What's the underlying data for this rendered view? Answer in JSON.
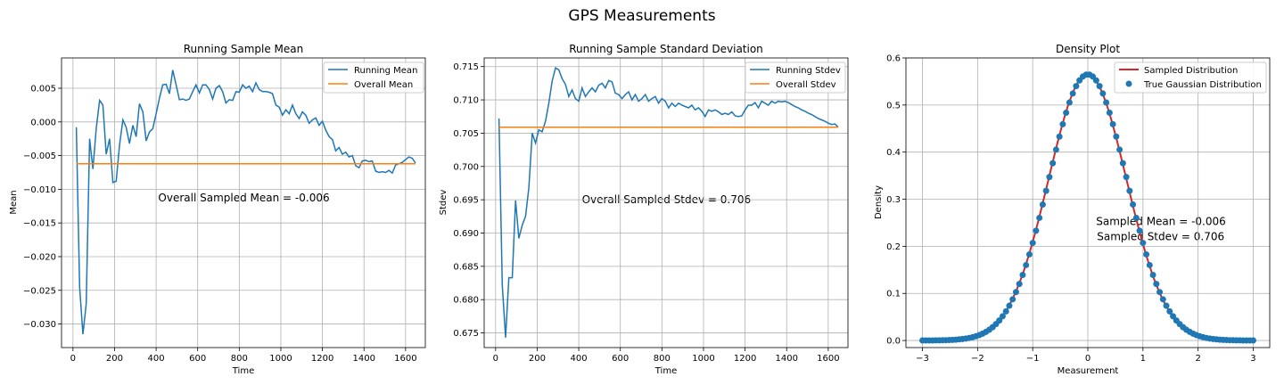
{
  "figure": {
    "title": "GPS Measurements"
  },
  "chart_data": [
    {
      "type": "line",
      "title": "Running Sample Mean",
      "xlabel": "Time",
      "ylabel": "Mean",
      "xlim": [
        -55,
        1695
      ],
      "ylim": [
        -0.0335,
        0.0095
      ],
      "xticks": [
        0,
        200,
        400,
        600,
        800,
        1000,
        1200,
        1400,
        1600
      ],
      "xtick_labels": [
        "0",
        "200",
        "400",
        "600",
        "800",
        "1000",
        "1200",
        "1400",
        "1600"
      ],
      "yticks": [
        -0.03,
        -0.025,
        -0.02,
        -0.015,
        -0.01,
        -0.005,
        0.0,
        0.005
      ],
      "ytick_labels": [
        "−0.030",
        "−0.025",
        "−0.020",
        "−0.015",
        "−0.010",
        "−0.005",
        "0.000",
        "0.005"
      ],
      "grid": true,
      "legend": "top-right",
      "annotation": {
        "text": "Overall Sampled Mean = -0.006",
        "x": 410,
        "y": -0.0118
      },
      "series": [
        {
          "name": "Running Mean",
          "color": "#1f77b4",
          "x": [
            16,
            32,
            48,
            64,
            80,
            96,
            112,
            128,
            144,
            160,
            176,
            192,
            208,
            224,
            240,
            256,
            272,
            288,
            304,
            320,
            336,
            352,
            368,
            384,
            400,
            416,
            432,
            448,
            464,
            480,
            496,
            512,
            528,
            544,
            560,
            576,
            592,
            608,
            624,
            640,
            656,
            672,
            688,
            704,
            720,
            736,
            752,
            768,
            784,
            800,
            816,
            832,
            848,
            864,
            880,
            896,
            912,
            928,
            944,
            960,
            976,
            992,
            1008,
            1024,
            1040,
            1056,
            1072,
            1088,
            1104,
            1120,
            1136,
            1152,
            1168,
            1184,
            1200,
            1216,
            1232,
            1248,
            1264,
            1280,
            1296,
            1312,
            1328,
            1344,
            1360,
            1376,
            1392,
            1408,
            1424,
            1440,
            1456,
            1472,
            1488,
            1504,
            1520,
            1536,
            1552,
            1568,
            1584,
            1600,
            1616,
            1632,
            1648
          ],
          "y": [
            -0.0008,
            -0.0245,
            -0.0315,
            -0.027,
            -0.0025,
            -0.007,
            -0.001,
            0.0032,
            0.0025,
            -0.0048,
            -0.0025,
            -0.009,
            -0.0088,
            -0.0035,
            0.0003,
            -0.0008,
            -0.0032,
            -0.0005,
            -0.0022,
            0.0027,
            0.0015,
            -0.0028,
            -0.0015,
            -0.001,
            0.0012,
            0.0035,
            0.0055,
            0.0056,
            0.0042,
            0.0077,
            0.0055,
            0.0033,
            0.0034,
            0.0032,
            0.0034,
            0.0045,
            0.0055,
            0.0043,
            0.0055,
            0.0055,
            0.0048,
            0.0034,
            0.005,
            0.0054,
            0.0045,
            0.0028,
            0.0033,
            0.0032,
            0.0045,
            0.0044,
            0.0055,
            0.005,
            0.0053,
            0.0045,
            0.0058,
            0.0048,
            0.0045,
            0.0045,
            0.0044,
            0.0042,
            0.0025,
            0.0022,
            0.001,
            0.0018,
            0.0012,
            0.0025,
            0.0012,
            0.0005,
            0.0015,
            0.001,
            -0.0002,
            0.0003,
            0.0006,
            -0.0005,
            0.0001,
            -0.0012,
            -0.0022,
            -0.0026,
            -0.0043,
            -0.0038,
            -0.0048,
            -0.0045,
            -0.0052,
            -0.005,
            -0.0065,
            -0.0068,
            -0.0058,
            -0.0057,
            -0.0059,
            -0.0058,
            -0.0073,
            -0.0075,
            -0.0074,
            -0.0075,
            -0.0072,
            -0.0076,
            -0.0064,
            -0.0062,
            -0.006,
            -0.0056,
            -0.0052,
            -0.0054,
            -0.0061
          ]
        },
        {
          "name": "Overall Mean",
          "color": "#ff7f0e",
          "x": [
            16,
            1648
          ],
          "y": [
            -0.0062,
            -0.0062
          ]
        }
      ]
    },
    {
      "type": "line",
      "title": "Running Sample Standard Deviation",
      "xlabel": "Time",
      "ylabel": "Stdev",
      "xlim": [
        -55,
        1695
      ],
      "ylim": [
        0.6728,
        0.7163
      ],
      "xticks": [
        0,
        200,
        400,
        600,
        800,
        1000,
        1200,
        1400,
        1600
      ],
      "xtick_labels": [
        "0",
        "200",
        "400",
        "600",
        "800",
        "1000",
        "1200",
        "1400",
        "1600"
      ],
      "yticks": [
        0.675,
        0.68,
        0.685,
        0.69,
        0.695,
        0.7,
        0.705,
        0.71,
        0.715
      ],
      "ytick_labels": [
        "0.675",
        "0.680",
        "0.685",
        "0.690",
        "0.695",
        "0.700",
        "0.705",
        "0.710",
        "0.715"
      ],
      "grid": true,
      "legend": "top-right",
      "annotation": {
        "text": "Overall Sampled Stdev = 0.706",
        "x": 415,
        "y": 0.6945
      },
      "series": [
        {
          "name": "Running Stdev",
          "color": "#1f77b4",
          "x": [
            16,
            32,
            48,
            64,
            80,
            96,
            112,
            128,
            144,
            160,
            176,
            192,
            208,
            224,
            240,
            256,
            272,
            288,
            304,
            320,
            336,
            352,
            368,
            384,
            400,
            416,
            432,
            448,
            464,
            480,
            496,
            512,
            528,
            544,
            560,
            576,
            592,
            608,
            624,
            640,
            656,
            672,
            688,
            704,
            720,
            736,
            752,
            768,
            784,
            800,
            816,
            832,
            848,
            864,
            880,
            896,
            912,
            928,
            944,
            960,
            976,
            992,
            1008,
            1024,
            1040,
            1056,
            1072,
            1088,
            1104,
            1120,
            1136,
            1152,
            1168,
            1184,
            1200,
            1216,
            1232,
            1248,
            1264,
            1280,
            1296,
            1312,
            1328,
            1344,
            1360,
            1376,
            1392,
            1408,
            1424,
            1440,
            1456,
            1472,
            1488,
            1504,
            1520,
            1536,
            1552,
            1568,
            1584,
            1600,
            1616,
            1632,
            1648
          ],
          "y": [
            0.7072,
            0.6822,
            0.6743,
            0.6833,
            0.6833,
            0.6949,
            0.6892,
            0.6912,
            0.6925,
            0.6968,
            0.705,
            0.7035,
            0.7055,
            0.7052,
            0.7068,
            0.7095,
            0.7128,
            0.7148,
            0.7145,
            0.7132,
            0.7123,
            0.7105,
            0.7115,
            0.7102,
            0.7098,
            0.7118,
            0.7105,
            0.7112,
            0.7118,
            0.7112,
            0.7122,
            0.7125,
            0.7118,
            0.7129,
            0.7127,
            0.711,
            0.7108,
            0.7102,
            0.7108,
            0.7112,
            0.71,
            0.7108,
            0.7098,
            0.7102,
            0.7108,
            0.7098,
            0.7102,
            0.7105,
            0.7095,
            0.7102,
            0.7098,
            0.7088,
            0.7095,
            0.709,
            0.7095,
            0.7092,
            0.709,
            0.7088,
            0.7092,
            0.7085,
            0.7088,
            0.7083,
            0.7075,
            0.7085,
            0.7083,
            0.7085,
            0.7082,
            0.7078,
            0.708,
            0.7078,
            0.7082,
            0.7076,
            0.7075,
            0.7076,
            0.7085,
            0.7092,
            0.7092,
            0.7096,
            0.7088,
            0.7098,
            0.7095,
            0.7092,
            0.7098,
            0.7095,
            0.7098,
            0.7097,
            0.7098,
            0.7096,
            0.7093,
            0.709,
            0.7088,
            0.7085,
            0.7083,
            0.708,
            0.7078,
            0.7075,
            0.7072,
            0.707,
            0.7068,
            0.7065,
            0.7063,
            0.7064,
            0.7059
          ]
        },
        {
          "name": "Overall Stdev",
          "color": "#ff7f0e",
          "x": [
            16,
            1648
          ],
          "y": [
            0.7059,
            0.7059
          ]
        }
      ]
    },
    {
      "type": "line",
      "title": "Density Plot",
      "xlabel": "Measurement",
      "ylabel": "Density",
      "xlim": [
        -3.3,
        3.3
      ],
      "ylim": [
        -0.015,
        0.6
      ],
      "xticks": [
        -3,
        -2,
        -1,
        0,
        1,
        2,
        3
      ],
      "xtick_labels": [
        "−3",
        "−2",
        "−1",
        "0",
        "1",
        "2",
        "3"
      ],
      "yticks": [
        0.0,
        0.1,
        0.2,
        0.3,
        0.4,
        0.5,
        0.6
      ],
      "ytick_labels": [
        "0.0",
        "0.1",
        "0.2",
        "0.3",
        "0.4",
        "0.5",
        "0.6"
      ],
      "grid": true,
      "legend": "top-right",
      "annotation": {
        "lines": [
          "Sampled Mean = -0.006",
          "Sampled Stdev = 0.706"
        ],
        "x": 0.15,
        "y": 0.245
      },
      "series": [
        {
          "name": "Sampled Distribution",
          "kind": "line",
          "color": "#d62728",
          "mean": -0.006,
          "stdev": 0.706,
          "xrange": [
            -3,
            3
          ]
        },
        {
          "name": "True Gaussian Distribution",
          "kind": "scatter",
          "color": "#1f77b4",
          "mean": 0.0,
          "stdev": 0.706,
          "xrange": [
            -3,
            3
          ],
          "points": 100
        }
      ]
    }
  ]
}
